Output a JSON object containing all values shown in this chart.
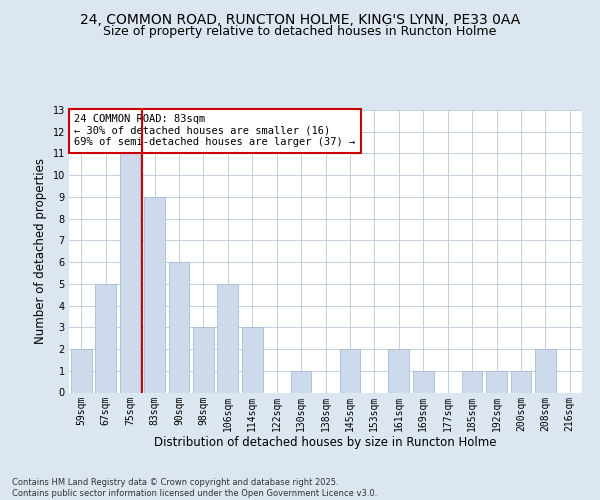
{
  "title1": "24, COMMON ROAD, RUNCTON HOLME, KING'S LYNN, PE33 0AA",
  "title2": "Size of property relative to detached houses in Runcton Holme",
  "xlabel": "Distribution of detached houses by size in Runcton Holme",
  "ylabel": "Number of detached properties",
  "footnote": "Contains HM Land Registry data © Crown copyright and database right 2025.\nContains public sector information licensed under the Open Government Licence v3.0.",
  "categories": [
    "59sqm",
    "67sqm",
    "75sqm",
    "83sqm",
    "90sqm",
    "98sqm",
    "106sqm",
    "114sqm",
    "122sqm",
    "130sqm",
    "138sqm",
    "145sqm",
    "153sqm",
    "161sqm",
    "169sqm",
    "177sqm",
    "185sqm",
    "192sqm",
    "200sqm",
    "208sqm",
    "216sqm"
  ],
  "values": [
    2,
    5,
    11,
    9,
    6,
    3,
    5,
    3,
    0,
    1,
    0,
    2,
    0,
    2,
    1,
    0,
    1,
    1,
    1,
    2,
    0
  ],
  "bar_color": "#cddaeb",
  "bar_edgecolor": "#a8bdd4",
  "vline_index": 2,
  "vline_color": "#cc0000",
  "annotation_text": "24 COMMON ROAD: 83sqm\n← 30% of detached houses are smaller (16)\n69% of semi-detached houses are larger (37) →",
  "annotation_box_edgecolor": "#cc0000",
  "annotation_box_facecolor": "white",
  "ylim": [
    0,
    13
  ],
  "yticks": [
    0,
    1,
    2,
    3,
    4,
    5,
    6,
    7,
    8,
    9,
    10,
    11,
    12,
    13
  ],
  "bg_color": "#dbe6f0",
  "plot_bg_color": "white",
  "grid_color": "#b8cad8",
  "title_fontsize": 10,
  "subtitle_fontsize": 9,
  "tick_fontsize": 7,
  "label_fontsize": 8.5,
  "footnote_fontsize": 6.0
}
